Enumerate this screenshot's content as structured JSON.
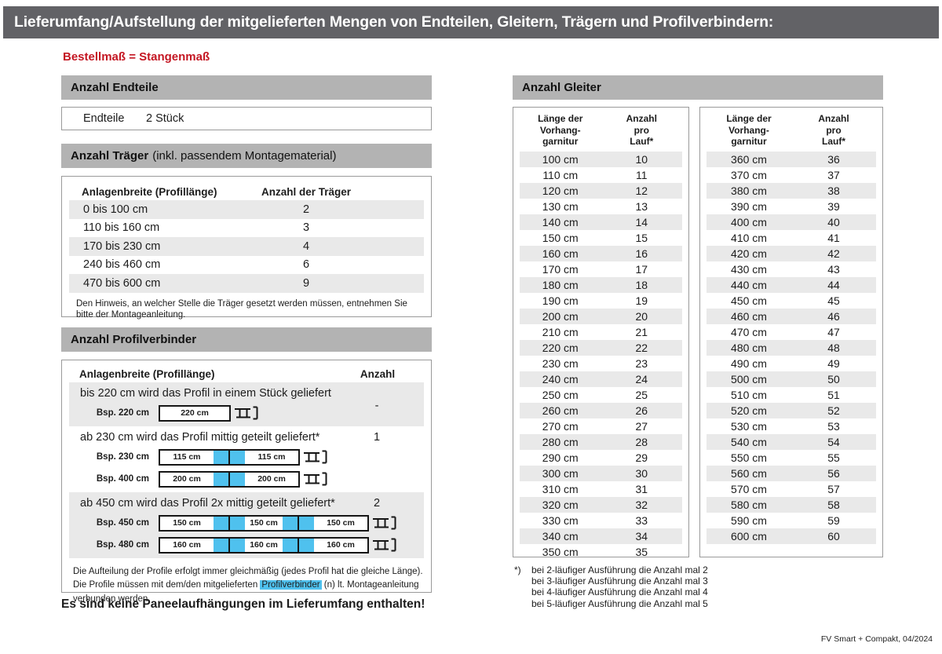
{
  "page": {
    "title": "Lieferumfang/Aufstellung der mitgelieferten Mengen von Endteilen, Gleitern, Trägern und Profilverbindern:",
    "subtitle": "Bestellmaß = Stangenmaß",
    "bottom_note": "Es sind keine Paneelaufhängungen im Lieferumfang enthalten!",
    "footer": "FV Smart + Compakt, 04/2024"
  },
  "colors": {
    "top_bar_gray": "#626266",
    "section_bar_gray": "#b3b3b3",
    "stripe_gray": "#e9e9e9",
    "accent_blue": "#4fc1ee",
    "accent_red": "#c41622"
  },
  "endteile": {
    "header": "Anzahl Endteile",
    "label": "Endteile",
    "value": "2 Stück"
  },
  "traeger": {
    "header_bold": "Anzahl Träger",
    "header_rest": "(inkl. passendem Montagematerial)",
    "col1": "Anlagenbreite (Profillänge)",
    "col2": "Anzahl der Träger",
    "rows": [
      {
        "range": "0 bis 100 cm",
        "count": "2"
      },
      {
        "range": "110 bis 160 cm",
        "count": "3"
      },
      {
        "range": "170 bis 230 cm",
        "count": "4"
      },
      {
        "range": "240 bis 460 cm",
        "count": "6"
      },
      {
        "range": "470 bis 600 cm",
        "count": "9"
      }
    ],
    "note": "Den Hinweis, an welcher Stelle die Träger gesetzt werden müssen, entnehmen Sie bitte der Montageanleitung."
  },
  "profilverbinder": {
    "header": "Anzahl Profilverbinder",
    "col1": "Anlagenbreite (Profillänge)",
    "col2": "Anzahl",
    "rows": [
      {
        "text": "bis 220 cm wird das Profil in einem Stück geliefert",
        "count": "-",
        "shaded": true,
        "diagrams": [
          {
            "label": "Bsp. 220 cm",
            "segments": [
              "220 cm"
            ]
          }
        ]
      },
      {
        "text": "ab 230 cm wird das Profil mittig geteilt geliefert*",
        "count": "1",
        "shaded": false,
        "diagrams": [
          {
            "label": "Bsp. 230 cm",
            "segments": [
              "115 cm",
              "115 cm"
            ]
          },
          {
            "label": "Bsp. 400 cm",
            "segments": [
              "200 cm",
              "200 cm"
            ]
          }
        ]
      },
      {
        "text": "ab 450 cm wird das Profil 2x mittig geteilt geliefert*",
        "count": "2",
        "shaded": true,
        "diagrams": [
          {
            "label": "Bsp. 450 cm",
            "segments": [
              "150 cm",
              "150 cm",
              "150 cm"
            ]
          },
          {
            "label": "Bsp. 480 cm",
            "segments": [
              "160 cm",
              "160 cm",
              "160 cm"
            ]
          }
        ]
      }
    ],
    "note_before": "Die Aufteilung der Profile erfolgt immer gleichmäßig (jedes Profil hat die gleiche Länge). Die Profile müssen mit dem/den mitgelieferten ",
    "note_highlight": "Profilverbinder",
    "note_after": " (n) lt. Montageanleitung verbunden werden."
  },
  "gleiter": {
    "header": "Anzahl Gleiter",
    "col1_lines": [
      "Länge der",
      "Vorhang-",
      "garnitur"
    ],
    "col2_lines": [
      "Anzahl",
      "pro",
      "Lauf*"
    ],
    "table1": {
      "rows": [
        {
          "len": "100 cm",
          "count": "10"
        },
        {
          "len": "110 cm",
          "count": "11"
        },
        {
          "len": "120 cm",
          "count": "12"
        },
        {
          "len": "130 cm",
          "count": "13"
        },
        {
          "len": "140 cm",
          "count": "14"
        },
        {
          "len": "150 cm",
          "count": "15"
        },
        {
          "len": "160 cm",
          "count": "16"
        },
        {
          "len": "170 cm",
          "count": "17"
        },
        {
          "len": "180 cm",
          "count": "18"
        },
        {
          "len": "190 cm",
          "count": "19"
        },
        {
          "len": "200 cm",
          "count": "20"
        },
        {
          "len": "210 cm",
          "count": "21"
        },
        {
          "len": "220 cm",
          "count": "22"
        },
        {
          "len": "230 cm",
          "count": "23"
        },
        {
          "len": "240 cm",
          "count": "24"
        },
        {
          "len": "250 cm",
          "count": "25"
        },
        {
          "len": "260 cm",
          "count": "26"
        },
        {
          "len": "270 cm",
          "count": "27"
        },
        {
          "len": "280 cm",
          "count": "28"
        },
        {
          "len": "290 cm",
          "count": "29"
        },
        {
          "len": "300 cm",
          "count": "30"
        },
        {
          "len": "310 cm",
          "count": "31"
        },
        {
          "len": "320 cm",
          "count": "32"
        },
        {
          "len": "330 cm",
          "count": "33"
        },
        {
          "len": "340 cm",
          "count": "34"
        },
        {
          "len": "350 cm",
          "count": "35"
        }
      ]
    },
    "table2": {
      "rows": [
        {
          "len": "360 cm",
          "count": "36"
        },
        {
          "len": "370 cm",
          "count": "37"
        },
        {
          "len": "380 cm",
          "count": "38"
        },
        {
          "len": "390 cm",
          "count": "39"
        },
        {
          "len": "400 cm",
          "count": "40"
        },
        {
          "len": "410 cm",
          "count": "41"
        },
        {
          "len": "420 cm",
          "count": "42"
        },
        {
          "len": "430 cm",
          "count": "43"
        },
        {
          "len": "440 cm",
          "count": "44"
        },
        {
          "len": "450 cm",
          "count": "45"
        },
        {
          "len": "460 cm",
          "count": "46"
        },
        {
          "len": "470 cm",
          "count": "47"
        },
        {
          "len": "480 cm",
          "count": "48"
        },
        {
          "len": "490 cm",
          "count": "49"
        },
        {
          "len": "500 cm",
          "count": "50"
        },
        {
          "len": "510 cm",
          "count": "51"
        },
        {
          "len": "520 cm",
          "count": "52"
        },
        {
          "len": "530 cm",
          "count": "53"
        },
        {
          "len": "540 cm",
          "count": "54"
        },
        {
          "len": "550 cm",
          "count": "55"
        },
        {
          "len": "560 cm",
          "count": "56"
        },
        {
          "len": "570 cm",
          "count": "57"
        },
        {
          "len": "580 cm",
          "count": "58"
        },
        {
          "len": "590 cm",
          "count": "59"
        },
        {
          "len": "600 cm",
          "count": "60"
        }
      ]
    },
    "footnotes": [
      {
        "marker": "*)",
        "text": "bei 2-läufiger Ausführung die Anzahl mal 2"
      },
      {
        "marker": "",
        "text": "bei 3-läufiger Ausführung die Anzahl mal 3"
      },
      {
        "marker": "",
        "text": "bei 4-läufiger Ausführung die Anzahl mal 4"
      },
      {
        "marker": "",
        "text": "bei 5-läufiger Ausführung die Anzahl mal 5"
      }
    ]
  }
}
